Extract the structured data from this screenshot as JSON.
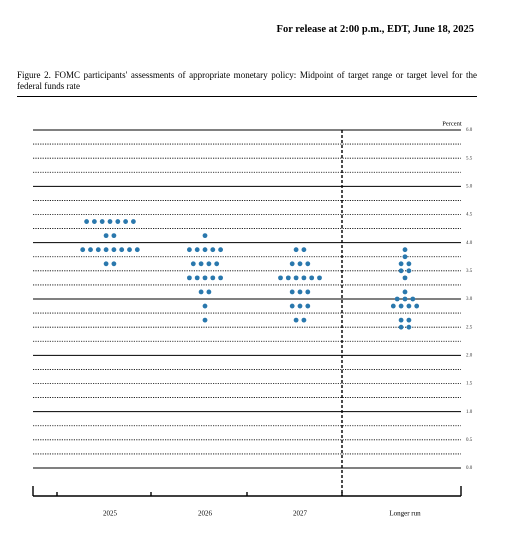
{
  "header": {
    "release": "For release at 2:00 p.m., EDT, June 18, 2025"
  },
  "chart_data": {
    "type": "dot",
    "title": "Figure 2.  FOMC participants' assessments of appropriate monetary policy: Midpoint of target range or target level for the federal funds rate",
    "ylabel": "Percent",
    "categories": [
      "2025",
      "2026",
      "2027",
      "Longer run"
    ],
    "color": "#2a78ad",
    "values": [
      [
        4.375,
        4.375,
        4.375,
        4.375,
        4.375,
        4.375,
        4.375,
        4.125,
        4.125,
        3.875,
        3.875,
        3.875,
        3.875,
        3.875,
        3.875,
        3.875,
        3.875,
        3.625,
        3.625
      ],
      [
        4.125,
        3.875,
        3.875,
        3.875,
        3.875,
        3.875,
        3.625,
        3.625,
        3.625,
        3.625,
        3.375,
        3.375,
        3.375,
        3.375,
        3.375,
        3.125,
        3.125,
        2.875,
        2.625
      ],
      [
        3.875,
        3.875,
        3.625,
        3.625,
        3.625,
        3.375,
        3.375,
        3.375,
        3.375,
        3.375,
        3.375,
        3.125,
        3.125,
        3.125,
        2.875,
        2.875,
        2.875,
        2.625,
        2.625
      ],
      [
        3.875,
        3.75,
        3.625,
        3.625,
        3.5,
        3.5,
        3.375,
        3.125,
        3,
        3,
        3,
        2.875,
        2.875,
        2.875,
        2.875,
        2.625,
        2.625,
        2.5,
        2.5
      ]
    ],
    "ylim": [
      0,
      6
    ],
    "yticks": [
      {
        "value": 0,
        "label": "0.0"
      },
      0.5,
      {
        "value": 1,
        "label": "1.0"
      },
      1.5,
      {
        "value": 2,
        "label": "2.0"
      },
      2.5,
      {
        "value": 3,
        "label": "3.0"
      },
      3.5,
      {
        "value": 4,
        "label": "4.0"
      },
      4.5,
      {
        "value": 5,
        "label": "5.0"
      },
      5.5,
      {
        "value": 6,
        "label": "6.0"
      }
    ],
    "grid": true
  }
}
